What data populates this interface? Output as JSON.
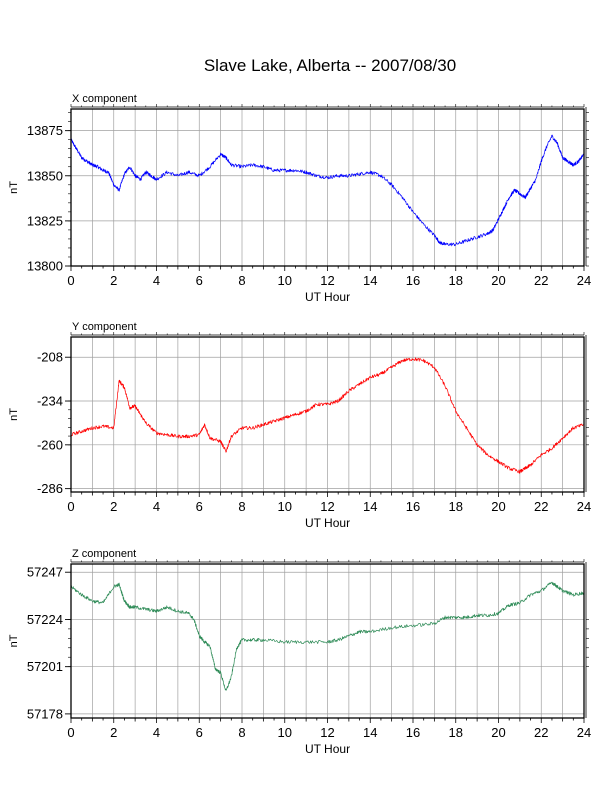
{
  "title": "Slave Lake, Alberta -- 2007/08/30",
  "chart_data": [
    {
      "type": "line",
      "panel_label": "X component",
      "xlabel": "UT Hour",
      "ylabel": "nT",
      "xlim": [
        0,
        24
      ],
      "ylim": [
        13800,
        13887
      ],
      "x_ticks": [
        0,
        2,
        4,
        6,
        8,
        10,
        12,
        14,
        16,
        18,
        20,
        22,
        24
      ],
      "y_ticks": [
        13800,
        13825,
        13850,
        13875
      ],
      "color": "#0000ff",
      "series": [
        {
          "x": [
            0,
            0.25,
            0.5,
            0.75,
            1,
            1.25,
            1.5,
            1.75,
            2,
            2.25,
            2.5,
            2.75,
            3,
            3.25,
            3.5,
            3.75,
            4,
            4.5,
            5,
            5.5,
            6,
            6.5,
            7,
            7.25,
            7.5,
            8,
            8.5,
            9,
            9.5,
            10,
            10.5,
            11,
            11.5,
            12,
            12.5,
            13,
            13.5,
            14,
            14.5,
            15,
            15.5,
            16,
            16.5,
            17,
            17.25,
            17.5,
            18,
            18.5,
            19,
            19.5,
            19.75,
            20,
            20.25,
            20.5,
            20.75,
            21,
            21.25,
            21.5,
            21.75,
            22,
            22.25,
            22.5,
            22.75,
            23,
            23.25,
            23.5,
            23.75,
            24
          ],
          "values": [
            13870,
            13865,
            13860,
            13858,
            13856,
            13855,
            13853,
            13852,
            13845,
            13842,
            13851,
            13855,
            13850,
            13848,
            13852,
            13850,
            13848,
            13852,
            13850,
            13852,
            13850,
            13855,
            13862,
            13860,
            13856,
            13855,
            13856,
            13855,
            13853,
            13853,
            13853,
            13852,
            13850,
            13849,
            13850,
            13850,
            13851,
            13852,
            13850,
            13845,
            13838,
            13830,
            13823,
            13817,
            13813,
            13812,
            13812,
            13814,
            13816,
            13818,
            13820,
            13826,
            13832,
            13838,
            13842,
            13840,
            13838,
            13843,
            13848,
            13858,
            13866,
            13872,
            13868,
            13860,
            13858,
            13856,
            13858,
            13862
          ]
        }
      ]
    },
    {
      "type": "line",
      "panel_label": "Y component",
      "xlabel": "UT Hour",
      "ylabel": "nT",
      "xlim": [
        0,
        24
      ],
      "ylim": [
        -288,
        -196
      ],
      "x_ticks": [
        0,
        2,
        4,
        6,
        8,
        10,
        12,
        14,
        16,
        18,
        20,
        22,
        24
      ],
      "y_ticks": [
        -208,
        -234,
        -260,
        -286
      ],
      "color": "#ff0000",
      "series": [
        {
          "x": [
            0,
            0.5,
            1,
            1.5,
            2,
            2.25,
            2.5,
            2.75,
            3,
            3.25,
            3.5,
            4,
            4.5,
            5,
            5.5,
            6,
            6.25,
            6.5,
            7,
            7.25,
            7.5,
            8,
            8.5,
            9,
            9.5,
            10,
            10.5,
            11,
            11.5,
            12,
            12.5,
            13,
            13.5,
            14,
            14.5,
            15,
            15.5,
            16,
            16.5,
            17,
            17.5,
            18,
            18.5,
            19,
            19.5,
            20,
            20.5,
            21,
            21.25,
            21.5,
            22,
            22.5,
            23,
            23.5,
            24
          ],
          "values": [
            -254,
            -252,
            -250,
            -249,
            -250,
            -222,
            -226,
            -238,
            -237,
            -242,
            -247,
            -253,
            -254,
            -255,
            -255,
            -254,
            -248,
            -256,
            -258,
            -264,
            -255,
            -250,
            -250,
            -248,
            -246,
            -244,
            -242,
            -240,
            -236,
            -236,
            -234,
            -228,
            -224,
            -220,
            -218,
            -214,
            -210,
            -209,
            -210,
            -214,
            -225,
            -240,
            -250,
            -260,
            -266,
            -270,
            -274,
            -276,
            -274,
            -272,
            -266,
            -262,
            -256,
            -250,
            -248
          ]
        }
      ]
    },
    {
      "type": "line",
      "panel_label": "Z component",
      "xlabel": "UT Hour",
      "ylabel": "nT",
      "xlim": [
        0,
        24
      ],
      "ylim": [
        57176,
        57251
      ],
      "x_ticks": [
        0,
        2,
        4,
        6,
        8,
        10,
        12,
        14,
        16,
        18,
        20,
        22,
        24
      ],
      "y_ticks": [
        57247,
        57224,
        57201,
        57178
      ],
      "color": "#2e8b57",
      "series": [
        {
          "x": [
            0,
            0.5,
            1,
            1.5,
            2,
            2.25,
            2.5,
            2.75,
            3,
            3.5,
            4,
            4.5,
            5,
            5.5,
            5.75,
            6,
            6.25,
            6.5,
            6.75,
            7,
            7.25,
            7.5,
            7.75,
            8,
            8.5,
            9,
            10,
            11,
            12,
            12.5,
            13,
            13.5,
            14,
            15,
            16,
            17,
            17.5,
            18,
            18.5,
            19,
            19.5,
            20,
            20.5,
            21,
            21.5,
            22,
            22.5,
            22.75,
            23,
            23.5,
            24
          ],
          "values": [
            57240,
            57236,
            57233,
            57232,
            57240,
            57241,
            57233,
            57230,
            57230,
            57229,
            57228,
            57230,
            57228,
            57227,
            57224,
            57216,
            57213,
            57211,
            57200,
            57198,
            57189,
            57196,
            57210,
            57214,
            57214,
            57214,
            57213,
            57213,
            57213,
            57214,
            57216,
            57218,
            57218,
            57220,
            57221,
            57222,
            57225,
            57225,
            57225,
            57226,
            57226,
            57227,
            57231,
            57232,
            57236,
            57238,
            57242,
            57240,
            57238,
            57236,
            57237
          ]
        }
      ]
    }
  ]
}
